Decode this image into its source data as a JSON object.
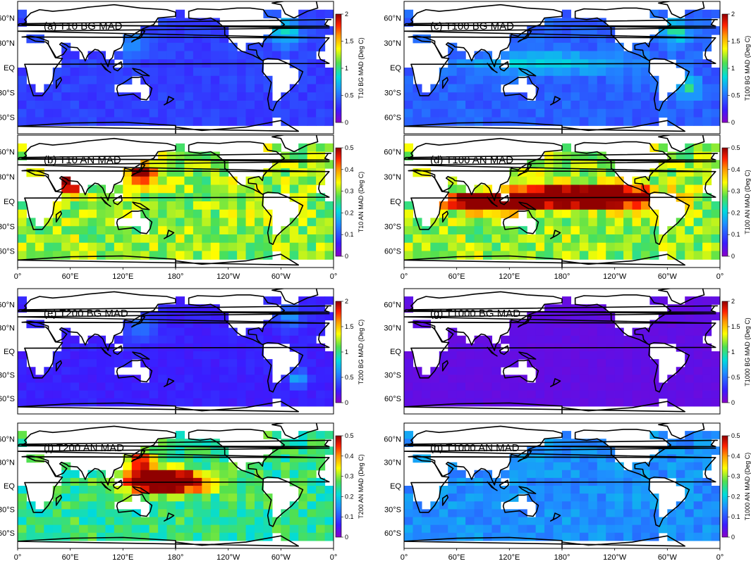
{
  "figure": {
    "lat_labels": [
      "60°N",
      "30°N",
      "EQ",
      "30°S",
      "60°S"
    ],
    "lon_labels": [
      "0°",
      "60°E",
      "120°E",
      "180°",
      "120°W",
      "60°W",
      "0°"
    ],
    "panels": [
      {
        "id": "a",
        "title": "(a) T10 BG MAD",
        "cbar_label": "T10 BG MAD (Deg C)",
        "cbar_max": 2,
        "cbar_ticks": [
          "0",
          "0.5",
          "1",
          "1.5",
          "2"
        ],
        "level": 0.35,
        "hotspots": [
          {
            "lon": -55,
            "lat": 45,
            "amp": 0.5,
            "r": 18
          },
          {
            "lon": 130,
            "lat": 28,
            "amp": 0.25,
            "r": 15
          }
        ]
      },
      {
        "id": "c",
        "title": "(c) T100 BG MAD",
        "cbar_label": "T100 BG MAD (Deg C)",
        "cbar_max": 2,
        "cbar_ticks": [
          "0",
          "0.5",
          "1",
          "1.5",
          "2"
        ],
        "level": 0.45,
        "hotspots": [
          {
            "lon": 165,
            "lat": 5,
            "amp": 0.4,
            "lat_r": 12,
            "lon_r": 90
          },
          {
            "lon": -35,
            "lat": -25,
            "amp": 0.5,
            "r": 12
          },
          {
            "lon": -50,
            "lat": 45,
            "amp": 0.5,
            "r": 15
          }
        ]
      },
      {
        "id": "b",
        "title": "(b) T10 AN MAD",
        "cbar_label": "T10 AN MAD (Deg C)",
        "cbar_max": 0.5,
        "cbar_ticks": [
          "0",
          "0.1",
          "0.2",
          "0.3",
          "0.4",
          "0.5"
        ],
        "level": 0.3,
        "hotspots": [
          {
            "lon": 60,
            "lat": 20,
            "amp": 0.35,
            "r": 10
          },
          {
            "lon": 140,
            "lat": 35,
            "amp": 0.2,
            "r": 15
          }
        ]
      },
      {
        "id": "d",
        "title": "(d) T100 AN MAD",
        "cbar_label": "T100 AN MAD (Deg C)",
        "cbar_max": 0.5,
        "cbar_ticks": [
          "0",
          "0.1",
          "0.2",
          "0.3",
          "0.4",
          "0.5"
        ],
        "level": 0.3,
        "hotspots": [
          {
            "lon": 100,
            "lat": 0,
            "amp": 0.6,
            "lat_r": 10,
            "lon_r": 40
          },
          {
            "lon": 210,
            "lat": 5,
            "amp": 0.45,
            "lat_r": 12,
            "lon_r": 70
          }
        ]
      },
      {
        "id": "e",
        "title": "(e) T200 BG MAD",
        "cbar_label": "T200 BG MAD (Deg C)",
        "cbar_max": 2,
        "cbar_ticks": [
          "0",
          "0.5",
          "1",
          "1.5",
          "2"
        ],
        "level": 0.25,
        "hotspots": [
          {
            "lon": 140,
            "lat": 30,
            "amp": 0.25,
            "r": 18
          },
          {
            "lon": -40,
            "lat": -35,
            "amp": 0.5,
            "r": 10
          },
          {
            "lon": -50,
            "lat": 45,
            "amp": 0.35,
            "r": 15
          }
        ]
      },
      {
        "id": "g",
        "title": "(g) T1000 BG MAD",
        "cbar_label": "T1000 BG MAD (Deg C)",
        "cbar_max": 2,
        "cbar_ticks": [
          "0",
          "0.5",
          "1",
          "1.5",
          "2"
        ],
        "level": 0.12,
        "hotspots": []
      },
      {
        "id": "f",
        "title": "(f) T200 AN MAD",
        "cbar_label": "T200 AN MAD (Deg C)",
        "cbar_max": 0.5,
        "cbar_ticks": [
          "0",
          "0.1",
          "0.2",
          "0.3",
          "0.4",
          "0.5"
        ],
        "level": 0.25,
        "hotspots": [
          {
            "lon": 170,
            "lat": 5,
            "amp": 0.45,
            "lat_r": 14,
            "lon_r": 45
          },
          {
            "lon": 140,
            "lat": 30,
            "amp": 0.2,
            "r": 15
          }
        ]
      },
      {
        "id": "h",
        "title": "(h) T1000 AN MAD",
        "cbar_label": "T1000 AN MAD (Deg C)",
        "cbar_max": 0.5,
        "cbar_ticks": [
          "0",
          "0.1",
          "0.2",
          "0.3",
          "0.4",
          "0.5"
        ],
        "level": 0.15,
        "hotspots": [
          {
            "lon": 40,
            "lat": 30,
            "amp": 0.2,
            "r": 8
          }
        ]
      }
    ]
  }
}
